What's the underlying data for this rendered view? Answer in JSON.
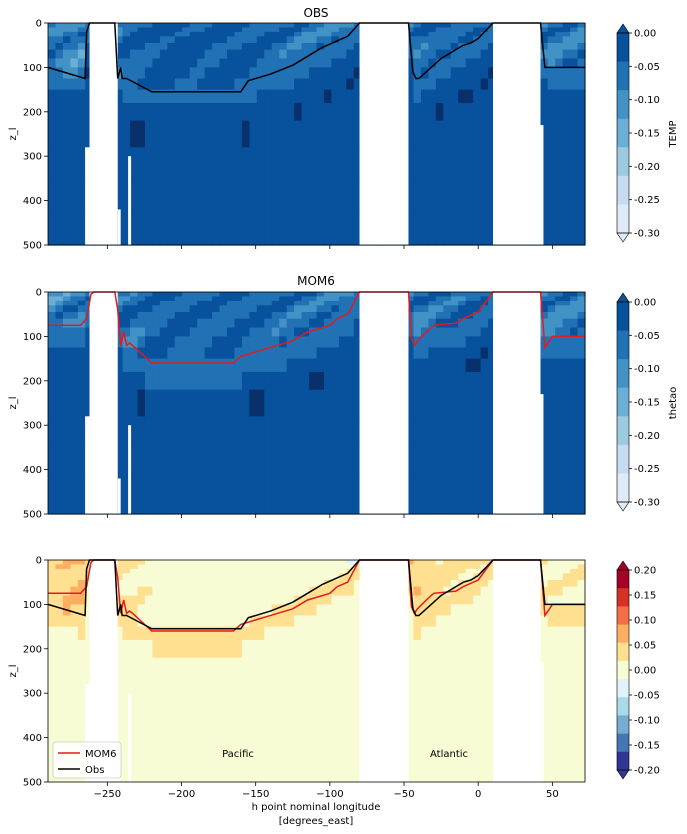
{
  "figure": {
    "x_axis_label_line1": "h point nominal longitude",
    "x_axis_label_line2": "[degrees_east]"
  },
  "colors": {
    "blues": [
      "#f7fbff",
      "#deebf7",
      "#c6dbef",
      "#9ecae1",
      "#6baed6",
      "#4292c6",
      "#2171b5",
      "#08519c",
      "#08306b"
    ],
    "diverging": [
      "#313695",
      "#4575b4",
      "#74add1",
      "#abd9e9",
      "#e0f3f8",
      "#f7fcd4",
      "#fee090",
      "#fdae61",
      "#f46d43",
      "#d73027",
      "#a50026"
    ],
    "mom6_line": "#e41a1c",
    "obs_line": "#000000"
  },
  "chart_data": [
    {
      "type": "heatmap",
      "title": "OBS",
      "ylabel": "z_l",
      "xlim": [
        -290,
        72
      ],
      "ylim": [
        500,
        0
      ],
      "yticks": [
        "0",
        "100",
        "200",
        "300",
        "400",
        "500"
      ],
      "xticks": [
        -250,
        -200,
        -150,
        -100,
        -50,
        0,
        50
      ],
      "show_xticklabels": false,
      "colorbar": {
        "label": "TEMP",
        "ticks": [
          "0.00",
          "-0.05",
          "-0.10",
          "-0.15",
          "-0.20",
          "-0.25",
          "-0.30"
        ],
        "range": [
          -0.3,
          0.0
        ]
      },
      "lines": [
        {
          "series": "Obs",
          "color": "#000000"
        }
      ]
    },
    {
      "type": "heatmap",
      "title": "MOM6",
      "ylabel": "z_l",
      "xlim": [
        -290,
        72
      ],
      "ylim": [
        500,
        0
      ],
      "yticks": [
        "0",
        "100",
        "200",
        "300",
        "400",
        "500"
      ],
      "xticks": [
        -250,
        -200,
        -150,
        -100,
        -50,
        0,
        50
      ],
      "show_xticklabels": false,
      "colorbar": {
        "label": "thetao",
        "ticks": [
          "0.00",
          "-0.05",
          "-0.10",
          "-0.15",
          "-0.20",
          "-0.25",
          "-0.30"
        ],
        "range": [
          -0.3,
          0.0
        ]
      },
      "lines": [
        {
          "series": "MOM6",
          "color": "#e41a1c"
        }
      ]
    },
    {
      "type": "heatmap",
      "title": "",
      "ylabel": "z_l",
      "xlim": [
        -290,
        72
      ],
      "ylim": [
        500,
        0
      ],
      "yticks": [
        "0",
        "100",
        "200",
        "300",
        "400",
        "500"
      ],
      "xticks": [
        -250,
        -200,
        -150,
        -100,
        -50,
        0,
        50
      ],
      "xticklabels": [
        "−250",
        "−200",
        "−150",
        "−100",
        "−50",
        "0",
        "50"
      ],
      "show_xticklabels": true,
      "colorbar": {
        "label": "",
        "ticks": [
          "0.20",
          "0.15",
          "0.10",
          "0.05",
          "0.00",
          "-0.05",
          "-0.10",
          "-0.15",
          "-0.20"
        ],
        "range": [
          -0.2,
          0.2
        ]
      },
      "lines": [
        {
          "series": "MOM6",
          "color": "#e41a1c"
        },
        {
          "series": "Obs",
          "color": "#000000"
        }
      ],
      "annotations": [
        "Pacific",
        "Atlantic"
      ],
      "legend": {
        "position": "lower-left",
        "entries": [
          "MOM6",
          "Obs"
        ]
      }
    }
  ],
  "series": {
    "Obs": {
      "lon": [
        -290,
        -265,
        -264,
        -262,
        -260,
        -258,
        -245,
        -243,
        -241,
        -240,
        -237,
        -220,
        -160,
        -155,
        -140,
        -125,
        -115,
        -105,
        -95,
        -88,
        -80,
        -47,
        -44,
        -42,
        -40,
        -30,
        -25,
        -20,
        -15,
        -10,
        -5,
        0,
        10,
        42,
        45,
        72
      ],
      "depth": [
        100,
        125,
        20,
        0,
        0,
        0,
        0,
        125,
        100,
        125,
        125,
        155,
        155,
        130,
        115,
        95,
        75,
        55,
        40,
        30,
        0,
        0,
        110,
        125,
        125,
        95,
        80,
        70,
        60,
        50,
        45,
        35,
        0,
        0,
        100,
        100
      ]
    },
    "MOM6": {
      "lon": [
        -290,
        -268,
        -264,
        -261,
        -259,
        -257,
        -245,
        -243,
        -241,
        -239,
        -237,
        -235,
        -233,
        -220,
        -165,
        -160,
        -145,
        -125,
        -115,
        -100,
        -95,
        -88,
        -80,
        -47,
        -45,
        -43,
        -41,
        -35,
        -30,
        -15,
        -10,
        0,
        10,
        42,
        45,
        50,
        72
      ],
      "depth": [
        75,
        75,
        60,
        5,
        0,
        0,
        0,
        40,
        120,
        90,
        120,
        115,
        120,
        160,
        160,
        145,
        130,
        110,
        90,
        75,
        60,
        50,
        0,
        0,
        105,
        120,
        110,
        90,
        75,
        70,
        60,
        45,
        0,
        0,
        125,
        100,
        100
      ]
    },
    "land": [
      [
        -262,
        -243
      ],
      [
        -80,
        -47
      ],
      [
        10,
        42
      ]
    ],
    "land_partial": [
      {
        "range": [
          -265,
          -262
        ],
        "from_depth": 280
      },
      {
        "range": [
          -249,
          -247
        ],
        "from_depth": 360
      },
      {
        "range": [
          -243,
          -241
        ],
        "from_depth": 420
      },
      {
        "range": [
          -236,
          -234
        ],
        "from_depth": 300
      },
      {
        "range": [
          42,
          44
        ],
        "from_depth": 230
      }
    ],
    "fields": {
      "obs": {
        "surface": [
          [
            -290,
            -0.12
          ],
          [
            -255,
            -0.15
          ],
          [
            -235,
            -0.08
          ],
          [
            -200,
            -0.06
          ],
          [
            -150,
            -0.08
          ],
          [
            -100,
            -0.12
          ],
          [
            -80,
            -0.15
          ],
          [
            -40,
            -0.1
          ],
          [
            0,
            -0.08
          ],
          [
            10,
            -0.1
          ],
          [
            72,
            -0.12
          ]
        ],
        "deep": -0.03,
        "mid": -0.08
      },
      "mom6": {
        "surface": [
          [
            -290,
            -0.14
          ],
          [
            -255,
            -0.12
          ],
          [
            -235,
            -0.1
          ],
          [
            -200,
            -0.08
          ],
          [
            -150,
            -0.09
          ],
          [
            -100,
            -0.11
          ],
          [
            -80,
            -0.16
          ],
          [
            -40,
            -0.11
          ],
          [
            0,
            -0.09
          ],
          [
            10,
            -0.1
          ],
          [
            72,
            -0.13
          ]
        ],
        "deep": -0.03,
        "mid": -0.09
      },
      "diff": {
        "surface": [
          [
            -290,
            0.06
          ],
          [
            -260,
            0.08
          ],
          [
            -240,
            0.03
          ],
          [
            -200,
            0.01
          ],
          [
            -150,
            0.02
          ],
          [
            -100,
            0.0
          ],
          [
            -80,
            -0.04
          ],
          [
            -45,
            0.07
          ],
          [
            -20,
            0.04
          ],
          [
            0,
            0.03
          ],
          [
            40,
            0.02
          ],
          [
            72,
            0.03
          ]
        ],
        "deep": 0.01,
        "mid": 0.03
      }
    }
  }
}
